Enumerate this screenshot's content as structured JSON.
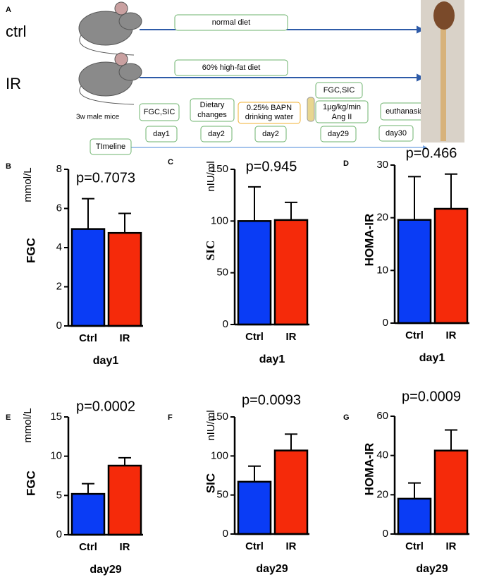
{
  "panel_a": {
    "label": "A",
    "groups": [
      "ctrl",
      "IR"
    ],
    "diets": [
      "normal diet",
      "60% high-fat diet"
    ],
    "mice": "3w male mice",
    "steps": [
      [
        "FGC,SIC"
      ],
      [
        "Dietary",
        "changes"
      ],
      [
        "0.25% BAPN",
        "drinking water"
      ],
      [
        "FGC,SIC"
      ],
      [
        "1μg/kg/min",
        "Ang II"
      ],
      [
        "euthanasia"
      ]
    ],
    "days": [
      "day1",
      "day2",
      "day2",
      "day29",
      "day30"
    ],
    "timeline": "TImeline"
  },
  "chart_data": [
    {
      "type": "bar",
      "label": "B",
      "unit": "mmol/L",
      "ylabel": "FGC",
      "annotation": "p=0.7073",
      "xlabel": "day1",
      "categories": [
        "Ctrl",
        "IR"
      ],
      "values": [
        4.95,
        4.75
      ],
      "errors": [
        1.55,
        1.0
      ],
      "colors": [
        "#0a3cf5",
        "#f52a0a"
      ],
      "ylim": [
        0,
        8
      ],
      "yticks": [
        0,
        2,
        4,
        6,
        8
      ]
    },
    {
      "type": "bar",
      "label": "C",
      "unit": "nIU/ml",
      "ylabel": "SIC",
      "annotation": "p=0.945",
      "xlabel": "day1",
      "categories": [
        "Ctrl",
        "IR"
      ],
      "values": [
        100,
        101
      ],
      "errors": [
        33,
        17
      ],
      "colors": [
        "#0a3cf5",
        "#f52a0a"
      ],
      "ylim": [
        0,
        150
      ],
      "yticks": [
        0,
        50,
        100,
        150
      ]
    },
    {
      "type": "bar",
      "label": "D",
      "ylabel": "HOMA-IR",
      "annotation": "p=0.466",
      "xlabel": "day1",
      "categories": [
        "Ctrl",
        "IR"
      ],
      "values": [
        19.6,
        21.7
      ],
      "errors": [
        8.2,
        6.6
      ],
      "colors": [
        "#0a3cf5",
        "#f52a0a"
      ],
      "ylim": [
        0,
        30
      ],
      "yticks": [
        0,
        10,
        20,
        30
      ]
    },
    {
      "type": "bar",
      "label": "E",
      "unit": "mmol/L",
      "ylabel": "FGC",
      "annotation": "p=0.0002",
      "xlabel": "day29",
      "categories": [
        "Ctrl",
        "IR"
      ],
      "values": [
        5.2,
        8.8
      ],
      "errors": [
        1.3,
        1.0
      ],
      "colors": [
        "#0a3cf5",
        "#f52a0a"
      ],
      "ylim": [
        0,
        15
      ],
      "yticks": [
        0,
        5,
        10,
        15
      ]
    },
    {
      "type": "bar",
      "label": "F",
      "unit": "nIU/ml",
      "ylabel": "SIC",
      "annotation": "p=0.0093",
      "xlabel": "day29",
      "categories": [
        "Ctrl",
        "IR"
      ],
      "values": [
        67,
        107
      ],
      "errors": [
        20,
        21
      ],
      "colors": [
        "#0a3cf5",
        "#f52a0a"
      ],
      "ylim": [
        0,
        150
      ],
      "yticks": [
        0,
        50,
        100,
        150
      ]
    },
    {
      "type": "bar",
      "label": "G",
      "ylabel": "HOMA-IR",
      "annotation": "p=0.0009",
      "xlabel": "day29",
      "categories": [
        "Ctrl",
        "IR"
      ],
      "values": [
        18,
        42.5
      ],
      "errors": [
        8,
        10.5
      ],
      "colors": [
        "#0a3cf5",
        "#f52a0a"
      ],
      "ylim": [
        0,
        60
      ],
      "yticks": [
        0,
        20,
        40,
        60
      ]
    }
  ]
}
